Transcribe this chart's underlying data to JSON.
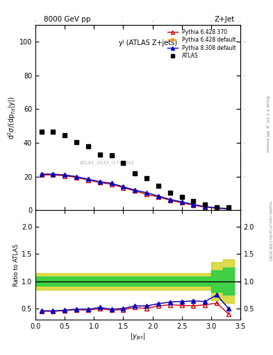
{
  "title_top": "8000 GeV pp",
  "title_right": "Z+Jet",
  "panel_title": "yʲ (ATLAS Z+jets)",
  "ylabel_main": "d²σ/(dp_Td|y|)",
  "ylabel_ratio": "Ratio to ATLAS",
  "xlabel": "|y_{jet}|",
  "right_label": "Rivet 3.1.10, ≥ 3M events",
  "watermark": "ATLAS_2019_I1744201",
  "arxiv_label": "mcplots.cern.ch [arXiv:1306.3436]",
  "atlas_x": [
    0.1,
    0.3,
    0.5,
    0.7,
    0.9,
    1.1,
    1.3,
    1.5,
    1.7,
    1.9,
    2.1,
    2.3,
    2.5,
    2.7,
    2.9,
    3.1,
    3.3
  ],
  "atlas_y": [
    46.5,
    46.5,
    44.5,
    40.5,
    38.0,
    33.0,
    32.5,
    28.0,
    22.0,
    19.0,
    14.5,
    10.5,
    8.0,
    5.5,
    3.5,
    2.0,
    2.0
  ],
  "py6_370_x": [
    0.1,
    0.3,
    0.5,
    0.7,
    0.9,
    1.1,
    1.3,
    1.5,
    1.7,
    1.9,
    2.1,
    2.3,
    2.5,
    2.7,
    2.9,
    3.1,
    3.3
  ],
  "py6_370_y": [
    21.0,
    21.0,
    20.5,
    19.5,
    18.0,
    16.5,
    15.5,
    13.5,
    11.5,
    9.5,
    8.0,
    6.0,
    4.5,
    3.0,
    2.0,
    1.2,
    0.8
  ],
  "py6_def_x": [
    0.1,
    0.3,
    0.5,
    0.7,
    0.9,
    1.1,
    1.3,
    1.5,
    1.7,
    1.9,
    2.1,
    2.3,
    2.5,
    2.7,
    2.9,
    3.1,
    3.3
  ],
  "py6_def_y": [
    21.5,
    21.5,
    21.0,
    20.0,
    18.5,
    17.0,
    16.0,
    14.0,
    12.0,
    10.0,
    8.5,
    6.5,
    5.0,
    3.5,
    2.2,
    1.5,
    1.0
  ],
  "py8_def_x": [
    0.1,
    0.3,
    0.5,
    0.7,
    0.9,
    1.1,
    1.3,
    1.5,
    1.7,
    1.9,
    2.1,
    2.3,
    2.5,
    2.7,
    2.9,
    3.1,
    3.3
  ],
  "py8_def_y": [
    21.5,
    21.5,
    21.0,
    20.0,
    18.5,
    17.0,
    16.0,
    14.0,
    12.0,
    10.5,
    8.5,
    6.5,
    5.0,
    3.5,
    2.2,
    1.5,
    1.0
  ],
  "ratio_py6_370_y": [
    0.45,
    0.45,
    0.46,
    0.48,
    0.47,
    0.5,
    0.47,
    0.48,
    0.52,
    0.5,
    0.55,
    0.57,
    0.56,
    0.55,
    0.57,
    0.6,
    0.4
  ],
  "ratio_py6_def_y": [
    0.46,
    0.46,
    0.47,
    0.49,
    0.49,
    0.52,
    0.49,
    0.5,
    0.55,
    0.53,
    0.59,
    0.62,
    0.63,
    0.64,
    0.63,
    0.75,
    0.5
  ],
  "ratio_py8_def_y": [
    0.46,
    0.46,
    0.47,
    0.49,
    0.49,
    0.52,
    0.49,
    0.5,
    0.55,
    0.55,
    0.59,
    0.62,
    0.63,
    0.64,
    0.63,
    0.75,
    0.5
  ],
  "band_x": [
    0.0,
    0.2,
    0.4,
    0.6,
    0.8,
    1.0,
    1.2,
    1.4,
    1.6,
    1.8,
    2.0,
    2.2,
    2.4,
    2.6,
    2.8,
    3.0,
    3.2,
    3.4
  ],
  "band_green_low": [
    0.92,
    0.92,
    0.92,
    0.92,
    0.92,
    0.92,
    0.92,
    0.92,
    0.92,
    0.92,
    0.92,
    0.92,
    0.92,
    0.92,
    0.92,
    0.8,
    0.75,
    0.75
  ],
  "band_green_high": [
    1.08,
    1.08,
    1.08,
    1.08,
    1.08,
    1.08,
    1.08,
    1.08,
    1.08,
    1.08,
    1.08,
    1.08,
    1.08,
    1.08,
    1.08,
    1.2,
    1.25,
    1.25
  ],
  "band_yellow_low": [
    0.85,
    0.85,
    0.85,
    0.85,
    0.85,
    0.85,
    0.85,
    0.85,
    0.85,
    0.85,
    0.85,
    0.85,
    0.85,
    0.85,
    0.85,
    0.65,
    0.6,
    0.6
  ],
  "band_yellow_high": [
    1.15,
    1.15,
    1.15,
    1.15,
    1.15,
    1.15,
    1.15,
    1.15,
    1.15,
    1.15,
    1.15,
    1.15,
    1.15,
    1.15,
    1.15,
    1.35,
    1.4,
    1.4
  ],
  "atlas_color": "black",
  "py6_370_color": "#cc0000",
  "py6_def_color": "#ff8800",
  "py8_def_color": "#0000cc",
  "green_band_color": "#00cc44",
  "yellow_band_color": "#cccc00",
  "ylim_main": [
    0,
    110
  ],
  "ylim_ratio": [
    0.3,
    2.3
  ],
  "xlim": [
    0.0,
    3.5
  ],
  "yticks_main": [
    0,
    20,
    40,
    60,
    80,
    100
  ],
  "yticks_ratio": [
    0.5,
    1.0,
    1.5,
    2.0
  ]
}
